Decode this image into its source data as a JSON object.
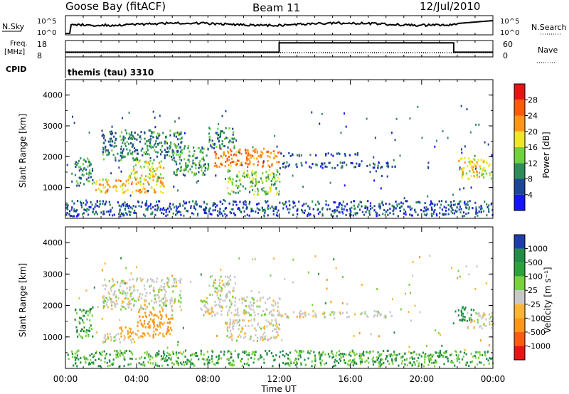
{
  "header": {
    "radar": "Goose Bay (fitACF)",
    "beam": "Beam 11",
    "date": "12/Jul/2010"
  },
  "nsky": {
    "label": "N.Sky",
    "tick_top": "10^5",
    "tick_bottom": "10^0",
    "right_label": "N.Search",
    "right_tick_top": "10^5",
    "right_tick_bottom": "10^0"
  },
  "freq": {
    "label_top": "Freq.",
    "label_bottom": "[MHz]",
    "tick_top": "18",
    "tick_bottom": "8",
    "right_label": "Nave",
    "right_tick_top": "60",
    "right_tick_bottom": "0"
  },
  "cpid": {
    "label": "CPID",
    "value": "themis (tau) 3310"
  },
  "x_axis": {
    "ticks": [
      "00:00",
      "04:00",
      "08:00",
      "12:00",
      "16:00",
      "20:00",
      "00:00"
    ],
    "label": "Time UT"
  },
  "power_panel": {
    "ylabel": "Slant Range [km]",
    "yticks": [
      "1000",
      "2000",
      "3000",
      "4000"
    ],
    "colorbar_label": "Power [dB]",
    "colorbar_ticks": [
      "4",
      "8",
      "12",
      "16",
      "20",
      "24",
      "28"
    ],
    "colors": [
      "#1414ff",
      "#1e4696",
      "#2e8c5a",
      "#6ed23c",
      "#f0e628",
      "#ff9614",
      "#ff5a0a",
      "#e61414"
    ]
  },
  "velocity_panel": {
    "ylabel": "Slant Range [km]",
    "yticks": [
      "1000",
      "2000",
      "3000",
      "4000"
    ],
    "colorbar_label": "Velocity [m s⁻¹]",
    "colorbar_ticks": [
      "1000",
      "500",
      "100",
      "25",
      "-25",
      "-100",
      "-500",
      "-1000"
    ],
    "colors": [
      "#1e3caa",
      "#238c46",
      "#2ea03c",
      "#78d23c",
      "#c8c8c8",
      "#ffb432",
      "#ff9614",
      "#ff5a14",
      "#e61414"
    ]
  },
  "chart_data": [
    {
      "type": "heatmap",
      "name": "power",
      "xlabel": "Time UT",
      "ylabel": "Slant Range [km]",
      "xlim_hours": [
        0,
        24
      ],
      "ylim_km": [
        0,
        4500
      ],
      "zlabel": "Power [dB]",
      "zlim": [
        0,
        32
      ],
      "regions": [
        {
          "t0": 0.5,
          "t1": 1.5,
          "r0": 1000,
          "r1": 2000,
          "level": 10
        },
        {
          "t0": 1.5,
          "t1": 5.5,
          "r0": 850,
          "r1": 1300,
          "level": 20
        },
        {
          "t0": 3.5,
          "t1": 5.5,
          "r0": 1300,
          "r1": 1900,
          "level": 17
        },
        {
          "t0": 2.0,
          "t1": 6.5,
          "r0": 1900,
          "r1": 2900,
          "level": 9
        },
        {
          "t0": 6.0,
          "t1": 8.0,
          "r0": 1400,
          "r1": 2400,
          "level": 11
        },
        {
          "t0": 8.3,
          "t1": 12.0,
          "r0": 1700,
          "r1": 2300,
          "level": 24
        },
        {
          "t0": 8.0,
          "t1": 9.5,
          "r0": 2300,
          "r1": 3000,
          "level": 10
        },
        {
          "t0": 9.0,
          "t1": 12.0,
          "r0": 800,
          "r1": 1600,
          "level": 14
        },
        {
          "t0": 12.0,
          "t1": 18.5,
          "r0": 1650,
          "r1": 1850,
          "level": 7
        },
        {
          "t0": 12.0,
          "t1": 16.5,
          "r0": 2050,
          "r1": 2150,
          "level": 6
        },
        {
          "t0": 22.0,
          "t1": 24.0,
          "r0": 1300,
          "r1": 2000,
          "level": 18
        },
        {
          "t0": 0.0,
          "t1": 24.0,
          "r0": 100,
          "r1": 600,
          "level": 6
        }
      ]
    },
    {
      "type": "heatmap",
      "name": "velocity",
      "xlabel": "Time UT",
      "ylabel": "Slant Range [km]",
      "xlim_hours": [
        0,
        24
      ],
      "ylim_km": [
        0,
        4500
      ],
      "zlabel": "Velocity [m s-1]",
      "zlim": [
        -1000,
        1000
      ],
      "regions": [
        {
          "t0": 0.5,
          "t1": 1.5,
          "r0": 1000,
          "r1": 2000,
          "level": 100
        },
        {
          "t0": 2.0,
          "t1": 4.0,
          "r0": 850,
          "r1": 1150,
          "level": 0
        },
        {
          "t0": 3.0,
          "t1": 6.0,
          "r0": 1000,
          "r1": 1350,
          "level": -100
        },
        {
          "t0": 4.0,
          "t1": 6.0,
          "r0": 1350,
          "r1": 1900,
          "level": -300
        },
        {
          "t0": 2.0,
          "t1": 6.5,
          "r0": 1900,
          "r1": 2900,
          "level": 0
        },
        {
          "t0": 7.5,
          "t1": 12.0,
          "r0": 1700,
          "r1": 2300,
          "level": 0
        },
        {
          "t0": 8.0,
          "t1": 9.5,
          "r0": 2300,
          "r1": 3000,
          "level": 0
        },
        {
          "t0": 9.0,
          "t1": 12.0,
          "r0": 900,
          "r1": 1600,
          "level": 0
        },
        {
          "t0": 12.0,
          "t1": 18.5,
          "r0": 1650,
          "r1": 1850,
          "level": 0
        },
        {
          "t0": 22.0,
          "t1": 23.0,
          "r0": 1500,
          "r1": 2000,
          "level": 200
        },
        {
          "t0": 22.5,
          "t1": 24.0,
          "r0": 1300,
          "r1": 1800,
          "level": 0
        },
        {
          "t0": 0.0,
          "t1": 24.0,
          "r0": 100,
          "r1": 600,
          "level": 100
        }
      ]
    },
    {
      "type": "line",
      "name": "frequency",
      "ylabel": "Freq. [MHz]",
      "ylim": [
        8,
        18
      ],
      "x_hours": [
        0,
        12.0,
        12.0,
        21.8,
        21.8,
        24
      ],
      "y": [
        11,
        11,
        17,
        17,
        11,
        11
      ]
    }
  ]
}
